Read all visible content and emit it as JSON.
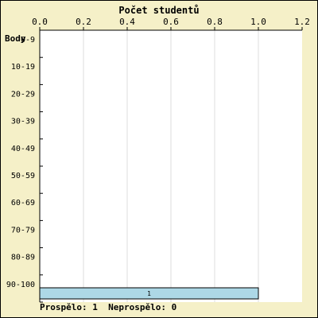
{
  "chart_data": {
    "type": "bar",
    "orientation": "horizontal",
    "title": "Počet studentů",
    "ylabel": "Body",
    "categories": [
      "0-9",
      "10-19",
      "20-29",
      "30-39",
      "40-49",
      "50-59",
      "60-69",
      "70-79",
      "80-89",
      "90-100"
    ],
    "values": [
      0,
      0,
      0,
      0,
      0,
      0,
      0,
      0,
      0,
      1
    ],
    "data_labels": [
      "",
      "",
      "",
      "",
      "",
      "",
      "",
      "",
      "",
      "1"
    ],
    "xlim": [
      0,
      1.2
    ],
    "xticks": [
      "0.0",
      "0.2",
      "0.4",
      "0.6",
      "0.8",
      "1.0",
      "1.2"
    ],
    "grid": true,
    "colors": {
      "background": "#f5f0c8",
      "plot": "#ffffff",
      "bar": "#add8e6",
      "grid": "#dddddd",
      "axis": "#000000"
    }
  },
  "footer": {
    "passed_label": "Prospělo:",
    "passed_value": "1",
    "failed_label": "Neprospělo:",
    "failed_value": "0"
  }
}
